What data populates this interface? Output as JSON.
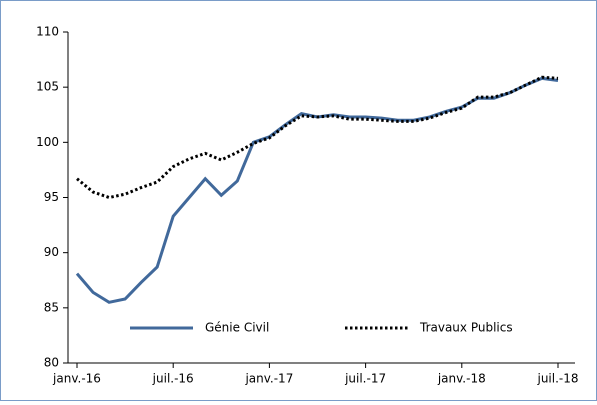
{
  "chart_data": {
    "type": "line",
    "categories": [
      "janv.-16",
      null,
      null,
      null,
      null,
      null,
      "juil.-16",
      null,
      null,
      null,
      null,
      null,
      "janv.-17",
      null,
      null,
      null,
      null,
      null,
      "juil.-17",
      null,
      null,
      null,
      null,
      null,
      "janv.-18",
      null,
      null,
      null,
      null,
      null,
      "juil.-18"
    ],
    "series": [
      {
        "name": "Génie Civil",
        "color": "#41699b",
        "style": "solid",
        "values": [
          88.1,
          86.4,
          85.5,
          85.8,
          87.3,
          88.7,
          93.3,
          95.0,
          96.7,
          95.2,
          96.5,
          100.0,
          100.5,
          101.6,
          102.6,
          102.3,
          102.5,
          102.3,
          102.3,
          102.2,
          102.0,
          102.0,
          102.3,
          102.8,
          103.2,
          104.0,
          104.0,
          104.5,
          105.2,
          105.8,
          105.6
        ]
      },
      {
        "name": "Travaux Publics",
        "color": "#000000",
        "style": "dotted",
        "values": [
          96.7,
          95.5,
          95.0,
          95.3,
          95.9,
          96.4,
          97.8,
          98.5,
          99.0,
          98.4,
          99.1,
          99.9,
          100.4,
          101.5,
          102.4,
          102.3,
          102.4,
          102.1,
          102.1,
          102.0,
          101.9,
          101.9,
          102.2,
          102.7,
          103.1,
          104.1,
          104.1,
          104.5,
          105.2,
          105.9,
          105.8
        ]
      }
    ],
    "ylim": [
      80,
      110
    ],
    "yticks": [
      80,
      85,
      90,
      95,
      100,
      105,
      110
    ],
    "legend": "bottom"
  }
}
